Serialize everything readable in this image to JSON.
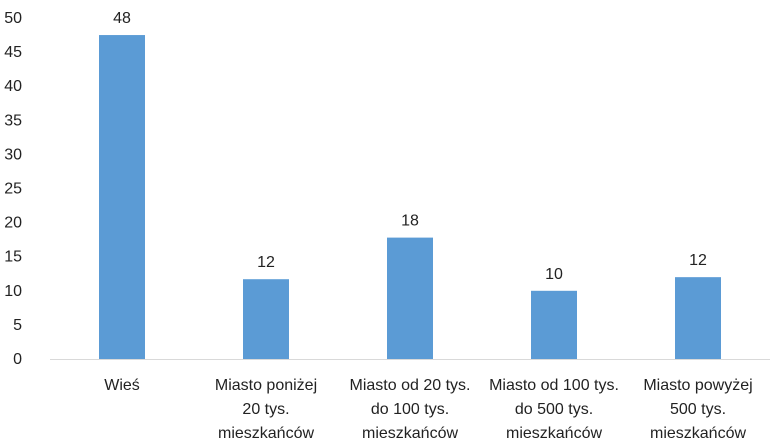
{
  "chart_data": {
    "type": "bar",
    "title": "",
    "xlabel": "",
    "ylabel": "",
    "ylim": [
      0,
      50
    ],
    "yticks": [
      0,
      5,
      10,
      15,
      20,
      25,
      30,
      35,
      40,
      45,
      50
    ],
    "grid": false,
    "categories": [
      [
        "Wieś"
      ],
      [
        "Miasto poniżej",
        "20 tys.",
        "mieszkańców"
      ],
      [
        "Miasto od 20 tys.",
        "do 100 tys.",
        "mieszkańców"
      ],
      [
        "Miasto od 100 tys.",
        "do 500 tys.",
        "mieszkańców"
      ],
      [
        "Miasto powyżej",
        "500 tys.",
        "mieszkańców"
      ]
    ],
    "values": [
      47.5,
      11.7,
      17.8,
      10,
      12
    ],
    "data_labels": [
      "48",
      "12",
      "18",
      "10",
      "12"
    ],
    "colors": {
      "bar": "#5b9bd5",
      "text": "#222222",
      "axis": "#d9d9d9"
    }
  }
}
